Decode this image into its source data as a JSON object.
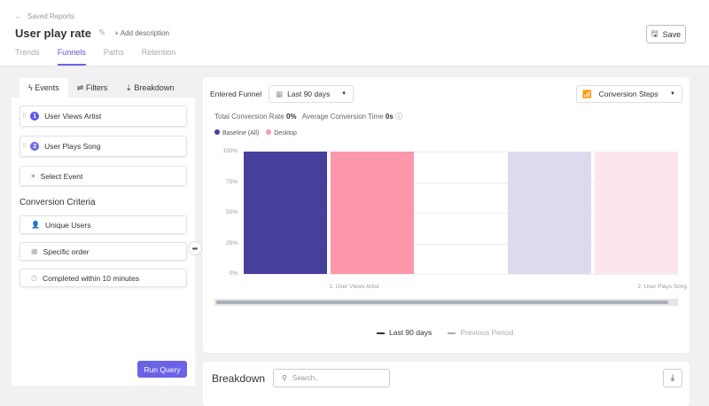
{
  "header": {
    "back_label": "Saved Reports",
    "title": "User play rate",
    "add_description": "+ Add description",
    "save_label": "Save",
    "tabs": [
      {
        "label": "Trends"
      },
      {
        "label": "Funnels",
        "active": true
      },
      {
        "label": "Paths"
      },
      {
        "label": "Retention"
      }
    ]
  },
  "left": {
    "tabs": [
      {
        "label": "Events",
        "active": true
      },
      {
        "label": "Filters"
      },
      {
        "label": "Breakdown"
      }
    ],
    "events": [
      {
        "n": "1",
        "label": "User Views Artist"
      },
      {
        "n": "2",
        "label": "User Plays Song"
      }
    ],
    "select_event": "Select Event",
    "criteria_title": "Conversion Criteria",
    "criteria": [
      {
        "icon": "user-icon",
        "label": "Unique Users"
      },
      {
        "icon": "grid-icon",
        "label": "Specific order"
      },
      {
        "icon": "clock-icon",
        "label": "Completed within 10 minutes"
      }
    ],
    "run_label": "Run Query"
  },
  "chart_panel": {
    "entered_label": "Entered Funnel",
    "date_range": "Last 90 days",
    "view": "Conversion Steps",
    "stats": {
      "rate_label": "Total Conversion Rate",
      "rate_value": "0%",
      "time_label": "Average Conversion Time",
      "time_value": "0s"
    },
    "period_legend": {
      "current": "Last 90 days",
      "previous": "Previous Period"
    }
  },
  "chart_data": {
    "type": "bar",
    "categories": [
      "1. User Views Artist",
      "2. User Plays Song"
    ],
    "series": [
      {
        "name": "Baseline (All)",
        "color": "#463f9c",
        "faded_color": "#dcdaec",
        "values": [
          100,
          0
        ]
      },
      {
        "name": "Desktop",
        "color": "#fd97ab",
        "faded_color": "#fde6eb",
        "values": [
          100,
          0
        ]
      }
    ],
    "dropoff_reference": [
      100,
      100
    ],
    "yticks": [
      "100%",
      "75%",
      "50%",
      "25%",
      "0%"
    ],
    "ylim": [
      0,
      100
    ],
    "grid": true,
    "legend": "top-left"
  },
  "breakdown": {
    "title": "Breakdown",
    "search_placeholder": "Search.."
  }
}
